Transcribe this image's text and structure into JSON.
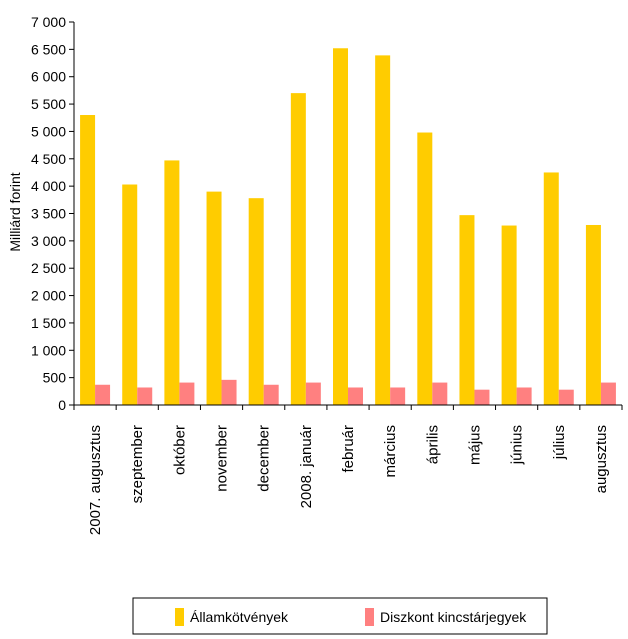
{
  "chart_data": {
    "type": "bar",
    "ylabel": "Milliárd forint",
    "xlabel": "",
    "ylim": [
      0,
      7000
    ],
    "ytick_step": 500,
    "yticks": [
      "0",
      "500",
      "1 000",
      "1 500",
      "2 000",
      "2 500",
      "3 000",
      "3 500",
      "4 000",
      "4 500",
      "5 000",
      "5 500",
      "6 000",
      "6 500",
      "7 000"
    ],
    "categories": [
      "2007. augusztus",
      "szeptember",
      "október",
      "november",
      "december",
      "2008. január",
      "február",
      "március",
      "április",
      "május",
      "június",
      "július",
      "augusztus"
    ],
    "series": [
      {
        "name": "Államkötvények",
        "color": "#FFCC00",
        "values": [
          5300,
          4030,
          4470,
          3900,
          3780,
          5700,
          6520,
          6390,
          4980,
          3470,
          3280,
          4250,
          3290
        ]
      },
      {
        "name": "Diszkont kincstárjegyek",
        "color": "#FF8080",
        "values": [
          370,
          320,
          410,
          460,
          370,
          410,
          320,
          320,
          410,
          280,
          320,
          280,
          410
        ]
      }
    ],
    "legend_position": "bottom",
    "grid": false
  }
}
